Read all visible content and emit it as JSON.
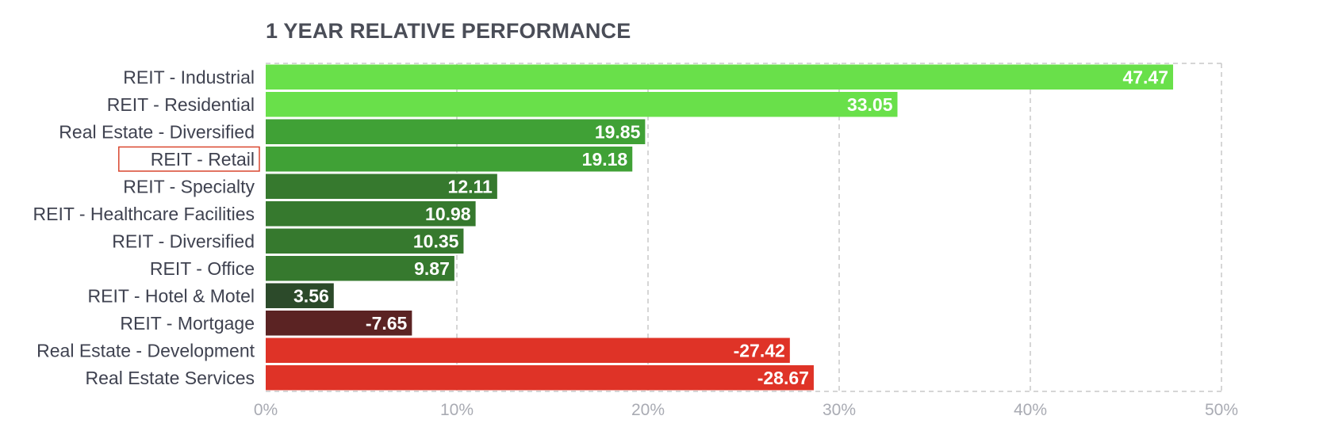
{
  "chart_data": {
    "type": "bar",
    "orientation": "horizontal",
    "title": "1 YEAR RELATIVE PERFORMANCE",
    "xlabel": "",
    "ylabel": "",
    "xlim": [
      0,
      50
    ],
    "x_ticks": [
      "0%",
      "10%",
      "20%",
      "30%",
      "40%",
      "50%"
    ],
    "grid": true,
    "bar_length_uses_absolute_value": true,
    "highlighted_category": "REIT - Retail",
    "categories": [
      "REIT - Industrial",
      "REIT - Residential",
      "Real Estate - Diversified",
      "REIT - Retail",
      "REIT - Specialty",
      "REIT - Healthcare Facilities",
      "REIT - Diversified",
      "REIT - Office",
      "REIT - Hotel & Motel",
      "REIT - Mortgage",
      "Real Estate - Development",
      "Real Estate Services"
    ],
    "values": [
      47.47,
      33.05,
      19.85,
      19.18,
      12.11,
      10.98,
      10.35,
      9.87,
      3.56,
      -7.65,
      -27.42,
      -28.67
    ],
    "value_labels": [
      "47.47",
      "33.05",
      "19.85",
      "19.18",
      "12.11",
      "10.98",
      "10.35",
      "9.87",
      "3.56",
      "-7.65",
      "-27.42",
      "-28.67"
    ],
    "colors": [
      "#69e04a",
      "#69e04a",
      "#40a136",
      "#40a136",
      "#36792e",
      "#36792e",
      "#36792e",
      "#36792e",
      "#2c4a2a",
      "#5b2323",
      "#df3327",
      "#df3327"
    ]
  }
}
